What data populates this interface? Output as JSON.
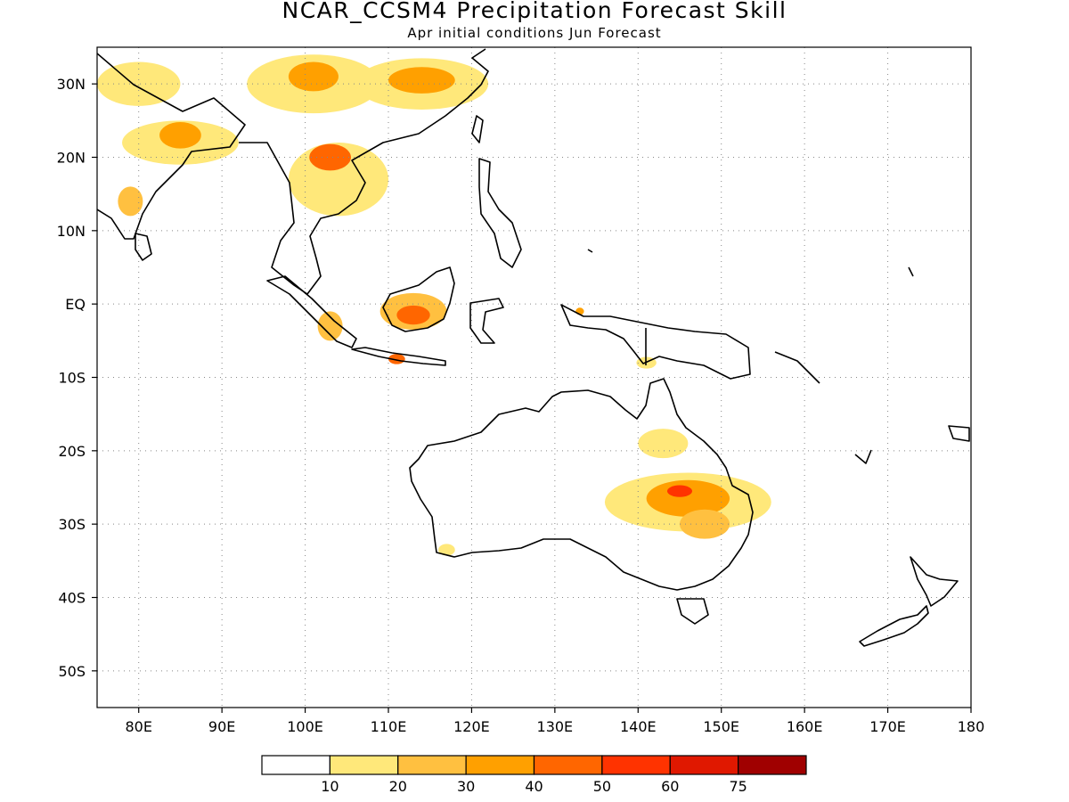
{
  "title": "NCAR_CCSM4 Precipitation Forecast Skill",
  "subtitle": "Apr initial conditions  Jun Forecast",
  "map": {
    "lon_range": [
      75,
      180
    ],
    "lat_range": [
      -55,
      35
    ],
    "lon_ticks": [
      {
        "value": 80,
        "label": "80E"
      },
      {
        "value": 90,
        "label": "90E"
      },
      {
        "value": 100,
        "label": "100E"
      },
      {
        "value": 110,
        "label": "110E"
      },
      {
        "value": 120,
        "label": "120E"
      },
      {
        "value": 130,
        "label": "130E"
      },
      {
        "value": 140,
        "label": "140E"
      },
      {
        "value": 150,
        "label": "150E"
      },
      {
        "value": 160,
        "label": "160E"
      },
      {
        "value": 170,
        "label": "170E"
      },
      {
        "value": 180,
        "label": "180"
      }
    ],
    "lat_ticks": [
      {
        "value": 30,
        "label": "30N"
      },
      {
        "value": 20,
        "label": "20N"
      },
      {
        "value": 10,
        "label": "10N"
      },
      {
        "value": 0,
        "label": "EQ"
      },
      {
        "value": -10,
        "label": "10S"
      },
      {
        "value": -20,
        "label": "20S"
      },
      {
        "value": -30,
        "label": "30S"
      },
      {
        "value": -40,
        "label": "40S"
      },
      {
        "value": -50,
        "label": "50S"
      }
    ],
    "gridlines": "dotted"
  },
  "colorbar": {
    "colors": [
      "#ffffff",
      "#ffe87a",
      "#ffc040",
      "#ffa000",
      "#ff6600",
      "#ff3300",
      "#e01800",
      "#a00000"
    ],
    "labels": [
      "10",
      "20",
      "30",
      "40",
      "50",
      "60",
      "75"
    ]
  },
  "skill_regions": [
    {
      "lon": 80,
      "lat": 30,
      "rx": 5,
      "ry": 3,
      "level": 1
    },
    {
      "lon": 85,
      "lat": 22,
      "rx": 7,
      "ry": 3,
      "level": 1
    },
    {
      "lon": 85,
      "lat": 23,
      "rx": 2.5,
      "ry": 1.8,
      "level": 3
    },
    {
      "lon": 79,
      "lat": 14,
      "rx": 1.5,
      "ry": 2,
      "level": 2
    },
    {
      "lon": 101,
      "lat": 30,
      "rx": 8,
      "ry": 4,
      "level": 1
    },
    {
      "lon": 101,
      "lat": 31,
      "rx": 3,
      "ry": 2,
      "level": 3
    },
    {
      "lon": 114,
      "lat": 30,
      "rx": 8,
      "ry": 3.5,
      "level": 1
    },
    {
      "lon": 114,
      "lat": 30.5,
      "rx": 4,
      "ry": 1.8,
      "level": 3
    },
    {
      "lon": 104,
      "lat": 17,
      "rx": 6,
      "ry": 5,
      "level": 1
    },
    {
      "lon": 103,
      "lat": 20,
      "rx": 2.5,
      "ry": 1.8,
      "level": 4
    },
    {
      "lon": 113,
      "lat": -1,
      "rx": 4,
      "ry": 2.5,
      "level": 2
    },
    {
      "lon": 113,
      "lat": -1.5,
      "rx": 2,
      "ry": 1.3,
      "level": 4
    },
    {
      "lon": 103,
      "lat": -3,
      "rx": 1.5,
      "ry": 2,
      "level": 2
    },
    {
      "lon": 111,
      "lat": -7.5,
      "rx": 1,
      "ry": 0.7,
      "level": 4
    },
    {
      "lon": 133,
      "lat": -1,
      "rx": 0.5,
      "ry": 0.5,
      "level": 3
    },
    {
      "lon": 141,
      "lat": -8,
      "rx": 1.2,
      "ry": 0.8,
      "level": 1
    },
    {
      "lon": 146,
      "lat": -27,
      "rx": 10,
      "ry": 4,
      "level": 1
    },
    {
      "lon": 146,
      "lat": -26.5,
      "rx": 5,
      "ry": 2.5,
      "level": 3
    },
    {
      "lon": 145,
      "lat": -25.5,
      "rx": 1.5,
      "ry": 0.8,
      "level": 5
    },
    {
      "lon": 148,
      "lat": -30,
      "rx": 3,
      "ry": 2,
      "level": 2
    },
    {
      "lon": 143,
      "lat": -19,
      "rx": 3,
      "ry": 2,
      "level": 1
    },
    {
      "lon": 117,
      "lat": -33.5,
      "rx": 1,
      "ry": 0.8,
      "level": 1
    }
  ]
}
